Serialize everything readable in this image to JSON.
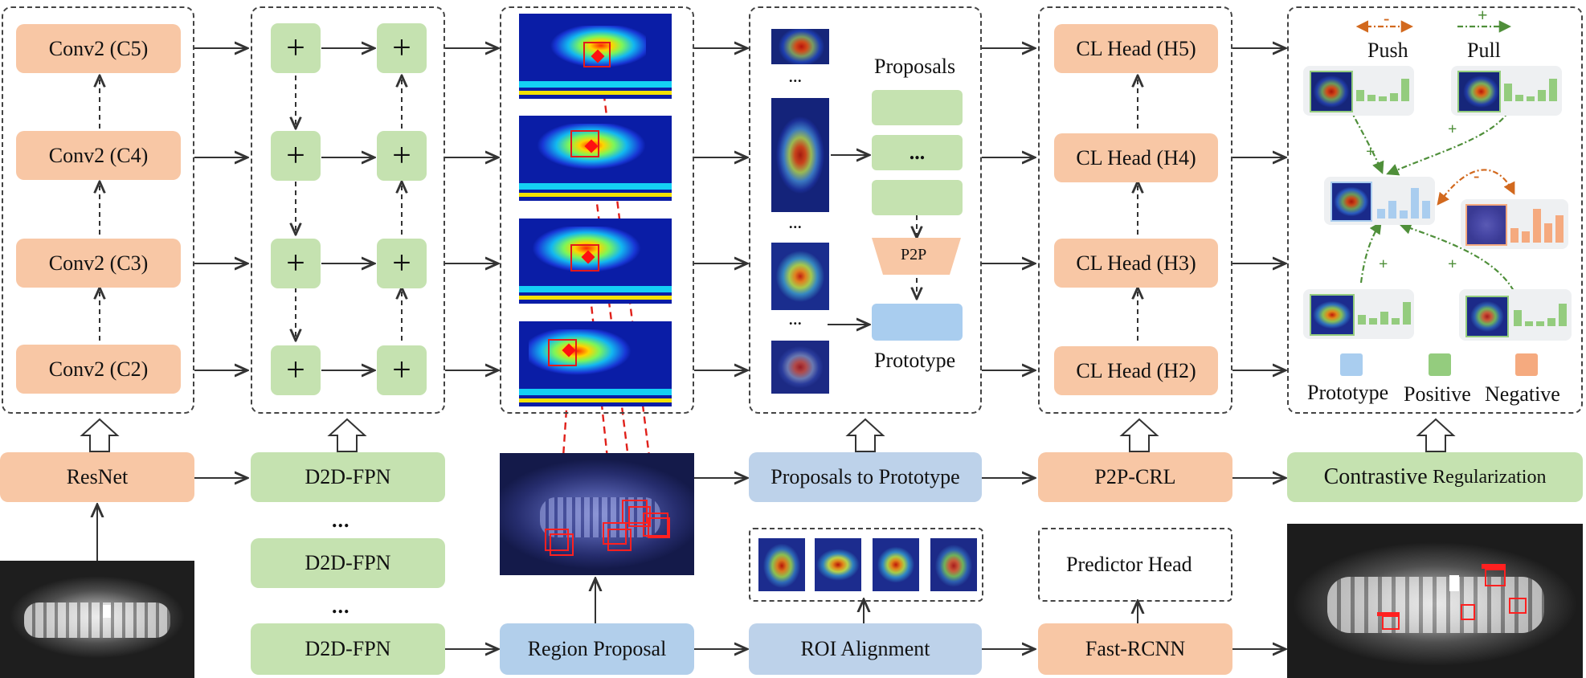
{
  "backbone": {
    "conv_labels": [
      "Conv2 (C5)",
      "Conv2 (C4)",
      "Conv2 (C3)",
      "Conv2 (C2)"
    ],
    "resnet": "ResNet"
  },
  "fpn": {
    "plus_symbol": "+",
    "d2d_labels": [
      "D2D-FPN",
      "D2D-FPN",
      "D2D-FPN"
    ],
    "ellipsis": "..."
  },
  "region_proposal": "Region Proposal",
  "p2p": {
    "proposals_title": "Proposals",
    "prototype_title": "Prototype",
    "p2p_label": "P2P",
    "ellipsis": "...",
    "module": "Proposals to Prototype"
  },
  "roi": {
    "label": "ROI Alignment"
  },
  "cl_heads": {
    "labels": [
      "CL Head (H5)",
      "CL Head (H4)",
      "CL Head (H3)",
      "CL Head (H2)"
    ],
    "module": "P2P-CRL"
  },
  "predictor": {
    "label": "Predictor Head",
    "fast_rcnn": "Fast-RCNN"
  },
  "contrastive": {
    "module_word1": "Contrastive",
    "module_word2": "Regularization",
    "push_label": "Push",
    "pull_label": "Pull",
    "push_sign": "-",
    "pull_sign": "+",
    "legend": [
      "Prototype",
      "Positive",
      "Negative"
    ]
  },
  "colors": {
    "orange": "#f8c7a5",
    "green": "#c5e2b0",
    "blue": "#bdd2ea",
    "prototype": "#a9cdef",
    "positive": "#94cc7e",
    "negative": "#f5aa7f",
    "push_arrow": "#d2691e",
    "pull_arrow": "#4f8f3a"
  }
}
